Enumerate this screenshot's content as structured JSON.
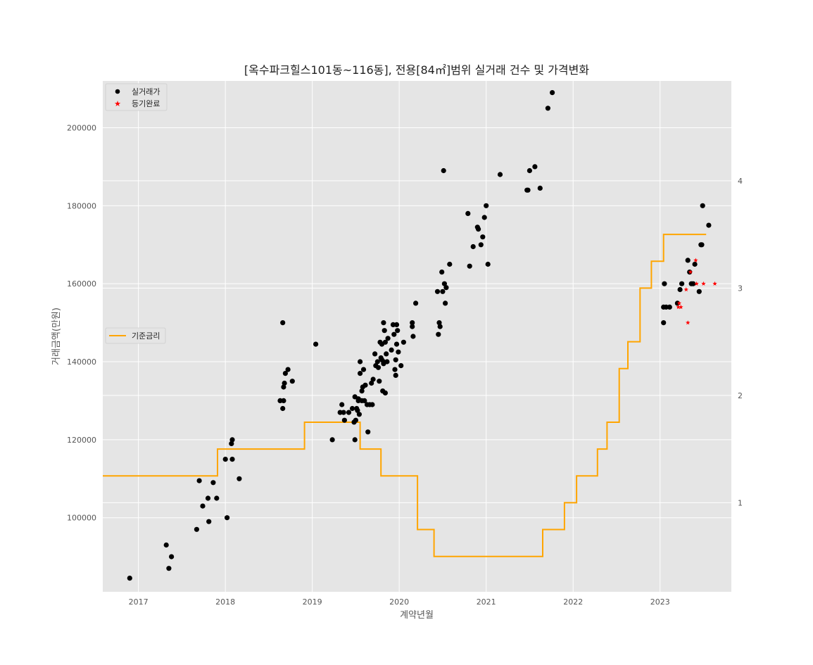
{
  "chart_data": {
    "type": "scatter",
    "title": "[옥수파크힐스101동~116동], 전용[84㎡]범위 실거래 건수 및 가격변화",
    "xlabel": "계약년월",
    "ylabel": "거래금액(만원)",
    "xlim": [
      2016.59,
      2023.82
    ],
    "ylim": [
      81000,
      212000
    ],
    "y2lim": [
      0.17,
      4.93
    ],
    "x_ticks": [
      2017,
      2018,
      2019,
      2020,
      2021,
      2022,
      2023
    ],
    "y_ticks": [
      100000,
      120000,
      140000,
      160000,
      180000,
      200000
    ],
    "y2_ticks": [
      1,
      2,
      3,
      4
    ],
    "grid": true,
    "legend_price": {
      "position": "upper-left",
      "entries": [
        "실거래가",
        "등기완료"
      ]
    },
    "legend_rate": {
      "position": "center-left",
      "entries": [
        "기준금리"
      ]
    },
    "colors": {
      "deal": "#000000",
      "registered": "#ff0000",
      "rate": "#ffa500",
      "plot_bg": "#e5e5e5",
      "grid": "#ffffff"
    },
    "series": [
      {
        "name": "실거래가",
        "kind": "scatter",
        "axis": "left",
        "points": [
          [
            2016.9,
            84500
          ],
          [
            2017.32,
            93000
          ],
          [
            2017.35,
            87000
          ],
          [
            2017.38,
            90000
          ],
          [
            2017.67,
            97000
          ],
          [
            2017.7,
            109500
          ],
          [
            2017.74,
            103000
          ],
          [
            2017.8,
            105000
          ],
          [
            2017.81,
            99000
          ],
          [
            2017.86,
            109000
          ],
          [
            2017.9,
            105000
          ],
          [
            2018.0,
            115000
          ],
          [
            2018.02,
            100000
          ],
          [
            2018.07,
            119000
          ],
          [
            2018.08,
            120000
          ],
          [
            2018.08,
            115000
          ],
          [
            2018.16,
            110000
          ],
          [
            2018.63,
            130000
          ],
          [
            2018.66,
            150000
          ],
          [
            2018.66,
            128000
          ],
          [
            2018.67,
            130000
          ],
          [
            2018.67,
            133500
          ],
          [
            2018.68,
            134500
          ],
          [
            2018.69,
            137000
          ],
          [
            2018.72,
            138000
          ],
          [
            2018.77,
            135000
          ],
          [
            2019.04,
            144500
          ],
          [
            2019.23,
            120000
          ],
          [
            2019.32,
            127000
          ],
          [
            2019.34,
            129000
          ],
          [
            2019.36,
            127000
          ],
          [
            2019.37,
            125000
          ],
          [
            2019.42,
            127000
          ],
          [
            2019.46,
            128000
          ],
          [
            2019.48,
            124500
          ],
          [
            2019.49,
            131000
          ],
          [
            2019.49,
            120000
          ],
          [
            2019.5,
            125000
          ],
          [
            2019.51,
            128000
          ],
          [
            2019.52,
            127500
          ],
          [
            2019.53,
            130500
          ],
          [
            2019.53,
            130000
          ],
          [
            2019.54,
            126500
          ],
          [
            2019.55,
            140000
          ],
          [
            2019.55,
            137000
          ],
          [
            2019.57,
            130000
          ],
          [
            2019.57,
            132500
          ],
          [
            2019.58,
            133500
          ],
          [
            2019.59,
            138000
          ],
          [
            2019.6,
            130000
          ],
          [
            2019.61,
            134000
          ],
          [
            2019.63,
            129000
          ],
          [
            2019.64,
            122000
          ],
          [
            2019.66,
            129000
          ],
          [
            2019.68,
            134500
          ],
          [
            2019.69,
            129000
          ],
          [
            2019.7,
            135500
          ],
          [
            2019.72,
            142000
          ],
          [
            2019.73,
            139000
          ],
          [
            2019.75,
            140000
          ],
          [
            2019.76,
            138500
          ],
          [
            2019.77,
            135000
          ],
          [
            2019.78,
            145000
          ],
          [
            2019.79,
            141000
          ],
          [
            2019.8,
            144500
          ],
          [
            2019.8,
            140500
          ],
          [
            2019.81,
            132500
          ],
          [
            2019.82,
            140000
          ],
          [
            2019.82,
            150000
          ],
          [
            2019.82,
            139500
          ],
          [
            2019.83,
            148000
          ],
          [
            2019.84,
            145000
          ],
          [
            2019.84,
            132000
          ],
          [
            2019.85,
            142000
          ],
          [
            2019.86,
            140000
          ],
          [
            2019.87,
            146000
          ],
          [
            2019.91,
            143000
          ],
          [
            2019.93,
            149500
          ],
          [
            2019.94,
            147000
          ],
          [
            2019.95,
            138000
          ],
          [
            2019.96,
            136500
          ],
          [
            2019.96,
            140500
          ],
          [
            2019.97,
            144500
          ],
          [
            2019.97,
            149500
          ],
          [
            2019.98,
            148000
          ],
          [
            2019.99,
            142500
          ],
          [
            2020.02,
            139000
          ],
          [
            2020.05,
            145000
          ],
          [
            2020.15,
            150000
          ],
          [
            2020.15,
            149000
          ],
          [
            2020.16,
            146500
          ],
          [
            2020.19,
            155000
          ],
          [
            2020.44,
            158000
          ],
          [
            2020.45,
            147000
          ],
          [
            2020.46,
            150000
          ],
          [
            2020.47,
            149000
          ],
          [
            2020.49,
            163000
          ],
          [
            2020.5,
            158000
          ],
          [
            2020.51,
            189000
          ],
          [
            2020.52,
            160000
          ],
          [
            2020.53,
            155000
          ],
          [
            2020.54,
            159000
          ],
          [
            2020.58,
            165000
          ],
          [
            2020.79,
            178000
          ],
          [
            2020.81,
            164500
          ],
          [
            2020.85,
            169500
          ],
          [
            2020.9,
            174500
          ],
          [
            2020.91,
            174000
          ],
          [
            2020.94,
            170000
          ],
          [
            2020.96,
            172000
          ],
          [
            2020.98,
            177000
          ],
          [
            2021.0,
            180000
          ],
          [
            2021.02,
            165000
          ],
          [
            2021.16,
            188000
          ],
          [
            2021.47,
            184000
          ],
          [
            2021.48,
            184000
          ],
          [
            2021.5,
            189000
          ],
          [
            2021.56,
            190000
          ],
          [
            2021.62,
            184500
          ],
          [
            2021.71,
            205000
          ],
          [
            2021.76,
            209000
          ],
          [
            2023.04,
            150000
          ],
          [
            2023.04,
            154000
          ],
          [
            2023.05,
            160000
          ],
          [
            2023.07,
            154000
          ],
          [
            2023.11,
            154000
          ],
          [
            2023.2,
            155000
          ],
          [
            2023.23,
            158500
          ],
          [
            2023.25,
            160000
          ],
          [
            2023.32,
            166000
          ],
          [
            2023.34,
            163000
          ],
          [
            2023.36,
            160000
          ],
          [
            2023.38,
            160000
          ],
          [
            2023.4,
            165000
          ],
          [
            2023.45,
            158000
          ],
          [
            2023.47,
            170000
          ],
          [
            2023.48,
            170000
          ],
          [
            2023.49,
            180000
          ],
          [
            2023.56,
            175000
          ]
        ]
      },
      {
        "name": "등기완료",
        "kind": "scatter",
        "axis": "left",
        "points": [
          [
            2023.21,
            154000
          ],
          [
            2023.22,
            155000
          ],
          [
            2023.24,
            154000
          ],
          [
            2023.3,
            158500
          ],
          [
            2023.32,
            150000
          ],
          [
            2023.35,
            163000
          ],
          [
            2023.41,
            166000
          ],
          [
            2023.42,
            160000
          ],
          [
            2023.5,
            160000
          ],
          [
            2023.63,
            160000
          ]
        ]
      },
      {
        "name": "기준금리",
        "kind": "step",
        "axis": "right",
        "points": [
          [
            2016.59,
            1.25
          ],
          [
            2017.91,
            1.5
          ],
          [
            2018.91,
            1.75
          ],
          [
            2019.55,
            1.5
          ],
          [
            2019.79,
            1.25
          ],
          [
            2020.21,
            0.75
          ],
          [
            2020.4,
            0.5
          ],
          [
            2021.65,
            0.75
          ],
          [
            2021.9,
            1.0
          ],
          [
            2022.04,
            1.25
          ],
          [
            2022.28,
            1.5
          ],
          [
            2022.39,
            1.75
          ],
          [
            2022.53,
            2.25
          ],
          [
            2022.63,
            2.5
          ],
          [
            2022.77,
            3.0
          ],
          [
            2022.9,
            3.25
          ],
          [
            2023.04,
            3.5
          ],
          [
            2023.53,
            3.5
          ]
        ]
      }
    ]
  }
}
